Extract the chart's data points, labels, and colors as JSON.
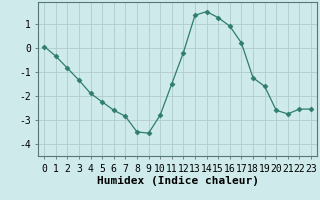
{
  "x": [
    0,
    1,
    2,
    3,
    4,
    5,
    6,
    7,
    8,
    9,
    10,
    11,
    12,
    13,
    14,
    15,
    16,
    17,
    18,
    19,
    20,
    21,
    22,
    23
  ],
  "y": [
    0.05,
    -0.35,
    -0.85,
    -1.35,
    -1.9,
    -2.25,
    -2.6,
    -2.85,
    -3.5,
    -3.55,
    -2.8,
    -1.5,
    -0.2,
    1.35,
    1.5,
    1.25,
    0.9,
    0.2,
    -1.25,
    -1.6,
    -2.6,
    -2.75,
    -2.55,
    -2.55
  ],
  "line_color": "#2e7d6e",
  "marker": "D",
  "marker_size": 2.5,
  "background_color": "#ceeaea",
  "grid_color": "#b0cccc",
  "xlabel": "Humidex (Indice chaleur)",
  "xlabel_fontsize": 8,
  "tick_fontsize": 7,
  "ylim": [
    -4.5,
    1.9
  ],
  "xlim": [
    -0.5,
    23.5
  ],
  "yticks": [
    -4,
    -3,
    -2,
    -1,
    0,
    1
  ],
  "xticks": [
    0,
    1,
    2,
    3,
    4,
    5,
    6,
    7,
    8,
    9,
    10,
    11,
    12,
    13,
    14,
    15,
    16,
    17,
    18,
    19,
    20,
    21,
    22,
    23
  ]
}
